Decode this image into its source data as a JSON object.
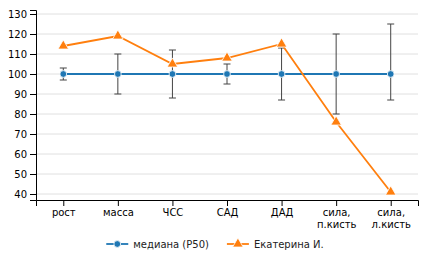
{
  "chart_data": {
    "type": "line",
    "categories": [
      "рост",
      "масса",
      "ЧСС",
      "САД",
      "ДАД",
      "сила,\nп.кисть",
      "сила,\nл.кисть"
    ],
    "series": [
      {
        "name": "медиана (Р50)",
        "marker": "circle",
        "values": [
          100,
          100,
          100,
          100,
          100,
          100,
          100
        ],
        "error_low": [
          3,
          10,
          12,
          5,
          13,
          20,
          13
        ],
        "error_high": [
          3,
          10,
          12,
          5,
          13,
          20,
          25
        ]
      },
      {
        "name": "Екатерина И.",
        "marker": "triangle",
        "values": [
          114,
          119,
          105,
          108,
          115,
          76,
          41
        ]
      }
    ],
    "ylim": [
      37,
      132
    ],
    "yticks": [
      40,
      50,
      60,
      70,
      80,
      90,
      100,
      110,
      120,
      130
    ],
    "grid": true,
    "legend": "bottom"
  }
}
